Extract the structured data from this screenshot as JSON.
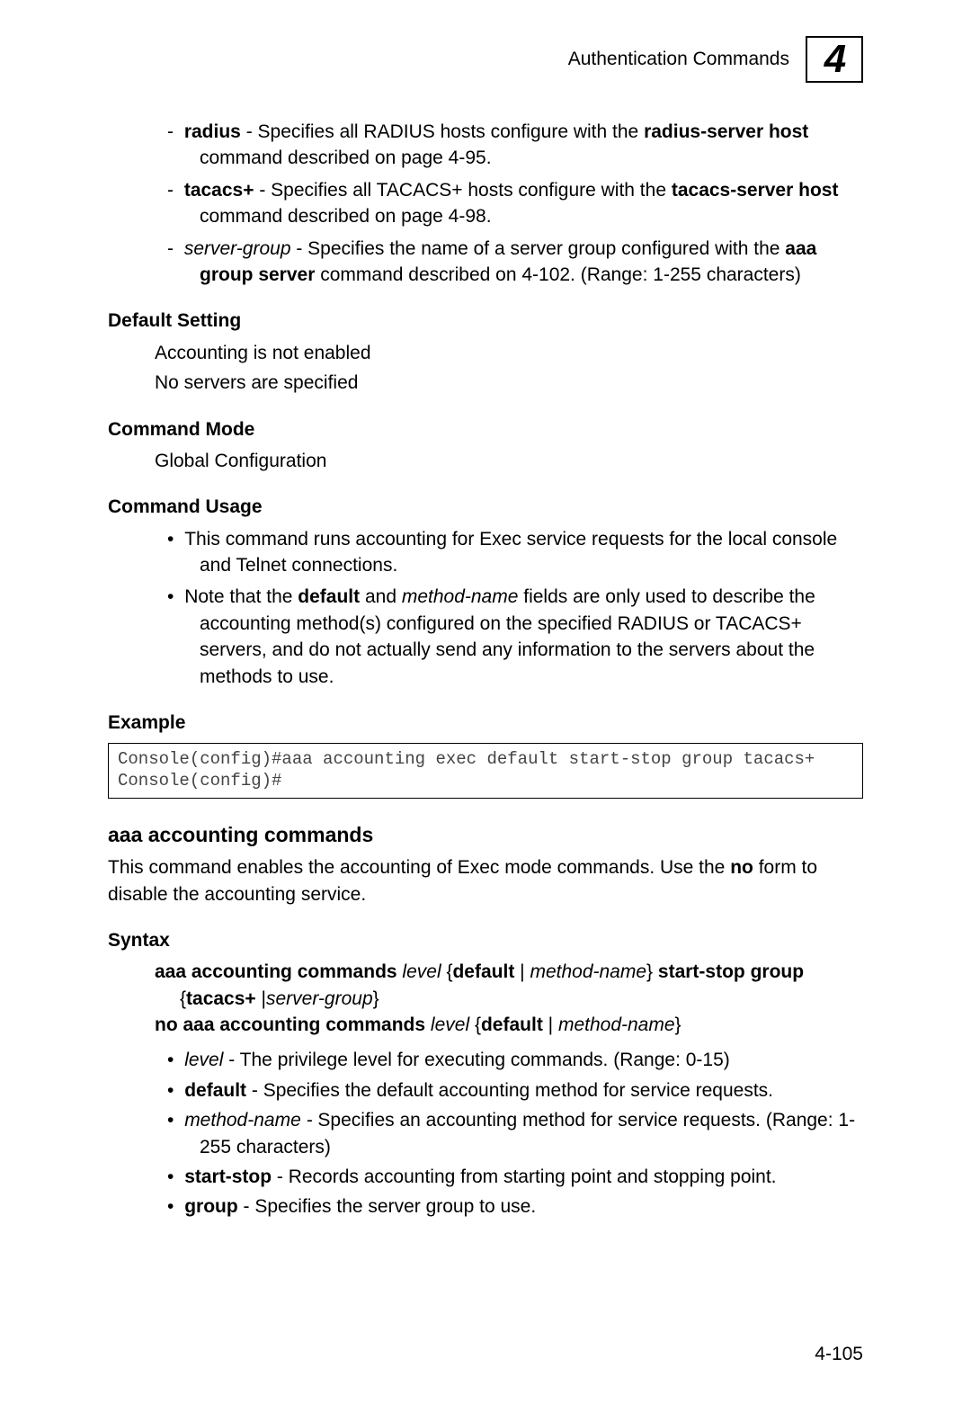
{
  "header": {
    "title": "Authentication Commands",
    "chapter_number": "4"
  },
  "top_dash_list": [
    {
      "segments": [
        {
          "t": "radius",
          "b": true
        },
        {
          "t": " - Specifies all RADIUS hosts configure with the "
        },
        {
          "t": "radius-server host",
          "b": true
        },
        {
          "t": " command described on page 4-95."
        }
      ]
    },
    {
      "segments": [
        {
          "t": "tacacs+",
          "b": true
        },
        {
          "t": " - Specifies all TACACS+ hosts configure with the "
        },
        {
          "t": "tacacs-server host",
          "b": true
        },
        {
          "t": " command described on page 4-98."
        }
      ]
    },
    {
      "segments": [
        {
          "t": "server-group",
          "i": true
        },
        {
          "t": " - Specifies the name of a server group configured with the "
        },
        {
          "t": "aaa group server",
          "b": true
        },
        {
          "t": " command described on 4-102. (Range: 1-255 characters)"
        }
      ]
    }
  ],
  "default_setting": {
    "heading": "Default Setting",
    "lines": [
      "Accounting is not enabled",
      "No servers are specified"
    ]
  },
  "command_mode": {
    "heading": "Command Mode",
    "lines": [
      "Global Configuration"
    ]
  },
  "command_usage": {
    "heading": "Command Usage",
    "bullets": [
      {
        "segments": [
          {
            "t": "This command runs accounting for Exec service requests for the local console and Telnet connections."
          }
        ]
      },
      {
        "segments": [
          {
            "t": "Note that the "
          },
          {
            "t": "default",
            "b": true
          },
          {
            "t": " and "
          },
          {
            "t": "method-name",
            "i": true
          },
          {
            "t": " fields are only used to describe the accounting method(s) configured on the specified RADIUS or TACACS+ servers, and do not actually send any information to the servers about the methods to use."
          }
        ]
      }
    ]
  },
  "example": {
    "heading": "Example",
    "code": "Console(config)#aaa accounting exec default start-stop group tacacs+\nConsole(config)#"
  },
  "command2": {
    "title": "aaa accounting commands",
    "intro_segments": [
      {
        "t": "This command enables the accounting of Exec mode commands. Use the "
      },
      {
        "t": "no",
        "b": true
      },
      {
        "t": " form to disable the accounting service."
      }
    ],
    "syntax_heading": "Syntax",
    "syntax_line1_segments": [
      {
        "t": "aaa accounting commands",
        "b": true
      },
      {
        "t": " "
      },
      {
        "t": "level",
        "i": true
      },
      {
        "t": " {"
      },
      {
        "t": "default",
        "b": true
      },
      {
        "t": " | "
      },
      {
        "t": "method-name",
        "i": true
      },
      {
        "t": "} "
      },
      {
        "t": "start-stop group",
        "b": true
      }
    ],
    "syntax_line1b_segments": [
      {
        "t": "{"
      },
      {
        "t": "tacacs+",
        "b": true
      },
      {
        "t": " |"
      },
      {
        "t": "server-group",
        "i": true
      },
      {
        "t": "}"
      }
    ],
    "syntax_line2_segments": [
      {
        "t": "no aaa accounting commands",
        "b": true
      },
      {
        "t": " "
      },
      {
        "t": "level",
        "i": true
      },
      {
        "t": " {"
      },
      {
        "t": "default",
        "b": true
      },
      {
        "t": " | "
      },
      {
        "t": "method-name",
        "i": true
      },
      {
        "t": "}"
      }
    ],
    "bullets": [
      {
        "segments": [
          {
            "t": "level",
            "i": true
          },
          {
            "t": " - The privilege level for executing commands. (Range: 0-15)"
          }
        ]
      },
      {
        "segments": [
          {
            "t": "default",
            "b": true
          },
          {
            "t": " - Specifies the default accounting method for service requests."
          }
        ]
      },
      {
        "segments": [
          {
            "t": "method-name - ",
            "i": true
          },
          {
            "t": "Specifies an accounting method for service requests. (Range: 1-255 characters)"
          }
        ]
      },
      {
        "segments": [
          {
            "t": "start-stop",
            "b": true
          },
          {
            "t": " - Records accounting from starting point and stopping point."
          }
        ]
      },
      {
        "segments": [
          {
            "t": "group",
            "b": true
          },
          {
            "t": " - Specifies the server group to use."
          }
        ]
      }
    ]
  },
  "page_number": "4-105"
}
